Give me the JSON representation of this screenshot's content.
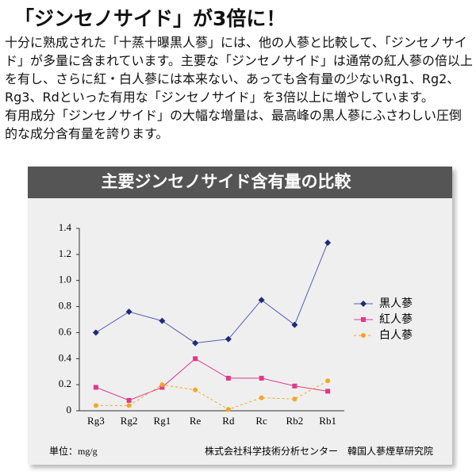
{
  "heading": "「ジンセノサイド」が3倍に！",
  "paragraphs": [
    "十分に熟成された「十蒸十曝黒人蔘」には、他の人蔘と比較して、「ジンセノサイド」が多量に含まれています。主要な「ジンセノサイド」は通常の紅人蔘の倍以上を有し、さらに紅・白人蔘には本来ない、あっても含有量の少ないRg1、Rg2、Rg3、Rdといった有用な「ジンセノサイド」を3倍以上に増やしています。",
    "有用成分「ジンセノサイド」の大幅な増量は、最高峰の黒人蔘にふさわしい圧倒的な成分含有量を誇ります。"
  ],
  "chart_data": {
    "type": "line",
    "title": "主要ジンセノサイド含有量の比較",
    "categories": [
      "Rg3",
      "Rg2",
      "Rg1",
      "Re",
      "Rd",
      "Rc",
      "Rb2",
      "Rb1"
    ],
    "series": [
      {
        "name": "黒人蔘",
        "color": "#5060b8",
        "marker_color": "#1f2a78",
        "marker": "diamond",
        "line_style": "solid",
        "values": [
          0.6,
          0.76,
          0.69,
          0.52,
          0.55,
          0.85,
          0.66,
          1.29
        ]
      },
      {
        "name": "紅人蔘",
        "color": "#e0388a",
        "marker_color": "#e0388a",
        "marker": "square",
        "line_style": "solid",
        "values": [
          0.18,
          0.08,
          0.18,
          0.4,
          0.25,
          0.25,
          0.19,
          0.15
        ]
      },
      {
        "name": "白人蔘",
        "color": "#f5a623",
        "marker_color": "#f5a623",
        "marker": "circle",
        "line_style": "dashed",
        "values": [
          0.04,
          0.04,
          0.2,
          0.16,
          0.01,
          0.1,
          0.09,
          0.23
        ]
      }
    ],
    "ylim": [
      0,
      1.4
    ],
    "yticks": [
      0,
      0.2,
      0.4,
      0.6,
      0.8,
      {
        "value": 1,
        "label": "1.0"
      },
      1.2,
      1.4
    ],
    "grid": false,
    "legend": "right",
    "unit_note": "単位：mg/g",
    "source": "株式会社科学技術分析センター　韓国人蔘煙草研究院"
  }
}
